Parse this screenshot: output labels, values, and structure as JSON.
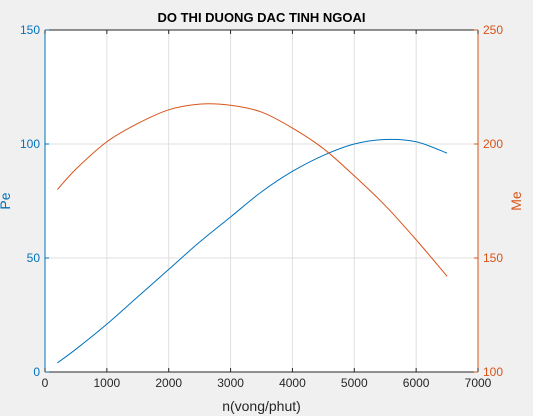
{
  "colors": {
    "background": "#f0f0f0",
    "plot_background": "#ffffff",
    "grid": "#dfdfdf",
    "axis_bottom": "#262626",
    "series_left": "#0072bd",
    "series_right": "#d95319",
    "title": "#000000"
  },
  "chart_data": {
    "type": "line",
    "title": "DO THI DUONG DAC TINH NGOAI",
    "xlabel": "n(vong/phut)",
    "ylabel_left": "Pe",
    "ylabel_right": "Me",
    "xlim": [
      0,
      7000
    ],
    "ylim_left": [
      0,
      150
    ],
    "ylim_right": [
      100,
      250
    ],
    "xticks": [
      0,
      1000,
      2000,
      3000,
      4000,
      5000,
      6000,
      7000
    ],
    "yticks_left": [
      0,
      50,
      100,
      150
    ],
    "yticks_right": [
      100,
      150,
      200,
      250
    ],
    "grid": true,
    "series": [
      {
        "name": "Pe",
        "axis": "left",
        "x": [
          200,
          500,
          1000,
          1500,
          2000,
          2500,
          3000,
          3500,
          4000,
          4500,
          5000,
          5500,
          6000,
          6500
        ],
        "y": [
          4,
          10,
          21,
          33,
          45,
          57,
          68,
          79,
          88,
          95,
          100,
          102,
          101,
          96
        ]
      },
      {
        "name": "Me",
        "axis": "right",
        "x": [
          200,
          500,
          1000,
          1500,
          2000,
          2500,
          3000,
          3500,
          4000,
          4500,
          5000,
          5500,
          6000,
          6500
        ],
        "y": [
          180,
          189,
          201,
          209,
          215,
          217.5,
          217,
          214,
          207,
          198,
          186,
          173,
          158,
          142
        ]
      }
    ]
  }
}
